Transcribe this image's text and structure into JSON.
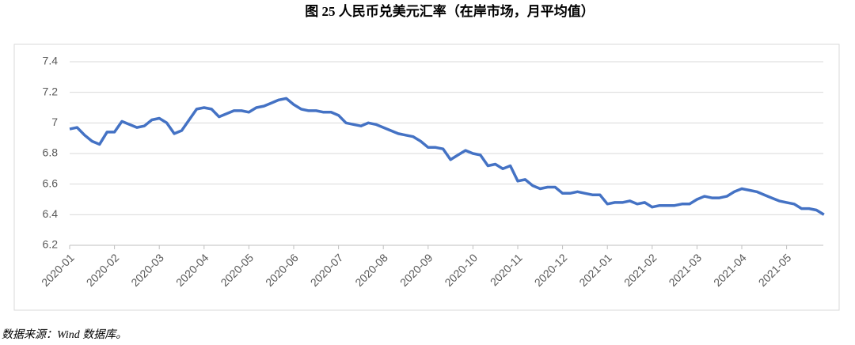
{
  "chart_data": {
    "type": "line",
    "title": "图 25  人民币兑美元汇率（在岸市场，月平均值）",
    "source": "数据来源：Wind 数据库。",
    "categories": [
      "2020-01",
      null,
      null,
      null,
      null,
      null,
      "2020-02",
      null,
      null,
      null,
      null,
      null,
      "2020-03",
      null,
      null,
      null,
      null,
      null,
      "2020-04",
      null,
      null,
      null,
      null,
      null,
      "2020-05",
      null,
      null,
      null,
      null,
      null,
      "2020-06",
      null,
      null,
      null,
      null,
      null,
      "2020-07",
      null,
      null,
      null,
      null,
      null,
      "2020-08",
      null,
      null,
      null,
      null,
      null,
      "2020-09",
      null,
      null,
      null,
      null,
      null,
      "2020-10",
      null,
      null,
      null,
      null,
      null,
      "2020-11",
      null,
      null,
      null,
      null,
      null,
      "2020-12",
      null,
      null,
      null,
      null,
      null,
      "2021-01",
      null,
      null,
      null,
      null,
      null,
      "2021-02",
      null,
      null,
      null,
      null,
      null,
      "2021-03",
      null,
      null,
      null,
      null,
      null,
      "2021-04",
      null,
      null,
      null,
      null,
      null,
      "2021-05",
      null,
      null,
      null,
      null,
      null
    ],
    "values": [
      6.96,
      6.97,
      6.92,
      6.88,
      6.86,
      6.94,
      6.94,
      7.01,
      6.99,
      6.97,
      6.98,
      7.02,
      7.03,
      7.0,
      6.93,
      6.95,
      7.02,
      7.09,
      7.1,
      7.09,
      7.04,
      7.06,
      7.08,
      7.08,
      7.07,
      7.1,
      7.11,
      7.13,
      7.15,
      7.16,
      7.12,
      7.09,
      7.08,
      7.08,
      7.07,
      7.07,
      7.05,
      7.0,
      6.99,
      6.98,
      7.0,
      6.99,
      6.97,
      6.95,
      6.93,
      6.92,
      6.91,
      6.88,
      6.84,
      6.84,
      6.83,
      6.76,
      6.79,
      6.82,
      6.8,
      6.79,
      6.72,
      6.73,
      6.7,
      6.72,
      6.62,
      6.63,
      6.59,
      6.57,
      6.58,
      6.58,
      6.54,
      6.54,
      6.55,
      6.54,
      6.53,
      6.53,
      6.47,
      6.48,
      6.48,
      6.49,
      6.47,
      6.48,
      6.45,
      6.46,
      6.46,
      6.46,
      6.47,
      6.47,
      6.5,
      6.52,
      6.51,
      6.51,
      6.52,
      6.55,
      6.57,
      6.56,
      6.55,
      6.53,
      6.51,
      6.49,
      6.48,
      6.47,
      6.44,
      6.44,
      6.43,
      6.4
    ],
    "color": "#4472c4",
    "ylim": [
      6.2,
      7.4
    ],
    "yticks": [
      6.2,
      6.4,
      6.6,
      6.8,
      7,
      7.2,
      7.4
    ],
    "grid": true
  }
}
